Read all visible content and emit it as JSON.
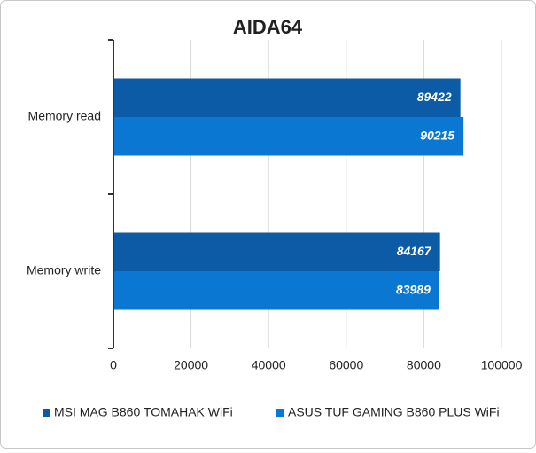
{
  "chart_data": {
    "type": "bar",
    "orientation": "horizontal",
    "title": "AIDA64",
    "categories": [
      "Memory read",
      "Memory write"
    ],
    "series": [
      {
        "name": "MSI MAG B860 TOMAHAK WiFi",
        "color": "#0b5ba6",
        "values": [
          89422,
          84167
        ]
      },
      {
        "name": "ASUS TUF GAMING B860 PLUS WiFi",
        "color": "#0a77d2",
        "values": [
          90215,
          83989
        ]
      }
    ],
    "xlim": [
      0,
      100000
    ],
    "xticks": [
      0,
      20000,
      40000,
      60000,
      80000,
      100000
    ],
    "grid": true,
    "legend": "bottom"
  }
}
